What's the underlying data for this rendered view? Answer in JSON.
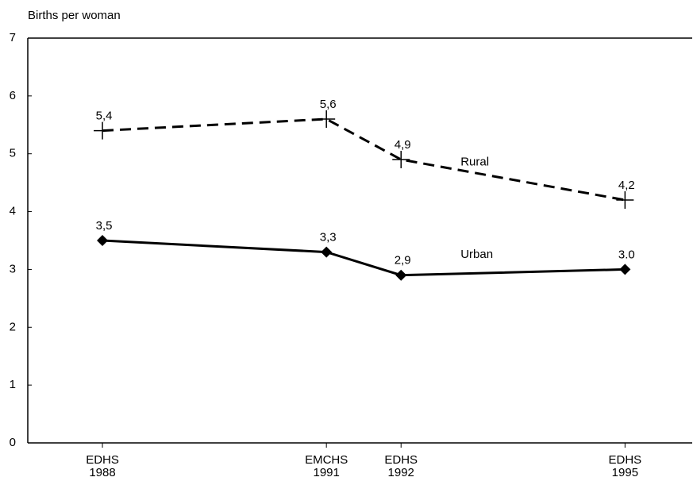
{
  "chart_data": {
    "type": "line",
    "y_axis_label": "Births per woman",
    "x": [
      1988,
      1991,
      1992,
      1995
    ],
    "surveys": [
      "EDHS",
      "EMCHS",
      "EDHS",
      "EDHS"
    ],
    "xticks": [
      1988,
      1991,
      1992,
      1995
    ],
    "xlim": [
      1987,
      1995.9
    ],
    "ylim": [
      0,
      7
    ],
    "yticks": [
      0,
      1,
      2,
      3,
      4,
      5,
      6,
      7
    ],
    "series": [
      {
        "name": "Rural",
        "color": "#000000",
        "dash": true,
        "marker": "plus",
        "values": [
          5.4,
          5.6,
          4.9,
          4.2
        ],
        "value_labels": [
          "5,4",
          "5,6",
          "4,9",
          "4,2"
        ]
      },
      {
        "name": "Urban",
        "color": "#000000",
        "dash": false,
        "marker": "diamond",
        "values": [
          3.5,
          3.3,
          2.9,
          3.0
        ],
        "value_labels": [
          "3,5",
          "3,3",
          "2,9",
          "3.0"
        ]
      }
    ]
  }
}
